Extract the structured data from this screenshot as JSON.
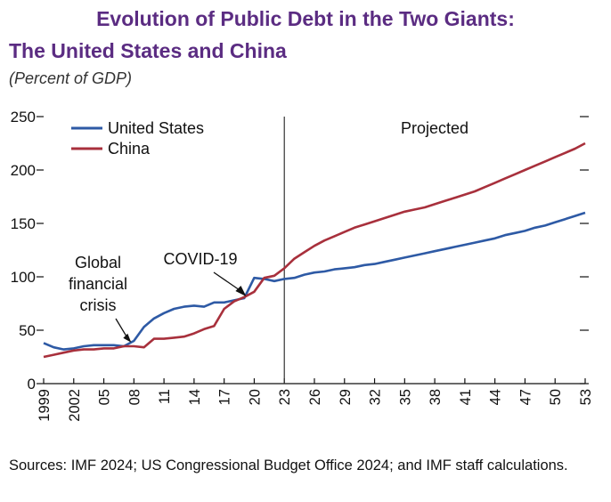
{
  "header": {
    "title_line1": "Evolution of Public Debt in the Two Giants:",
    "title_line2": "The United States and China",
    "subtitle": "(Percent of GDP)"
  },
  "colors": {
    "us": "#2e5aa5",
    "china": "#a8303c",
    "title": "#5b2c82"
  },
  "source": "Sources: IMF 2024; US Congressional Budget Office 2024; and IMF staff calculations.",
  "chart_data": {
    "type": "line",
    "title": "Evolution of Public Debt in the Two Giants: The United States and China",
    "subtitle": "(Percent of GDP)",
    "xlabel": "",
    "ylabel": "",
    "xlim": [
      1999,
      2053
    ],
    "ylim": [
      0,
      250
    ],
    "yticks": [
      0,
      50,
      100,
      150,
      200,
      250
    ],
    "x_ticks": [
      1999,
      2002,
      2005,
      2008,
      2011,
      2014,
      2017,
      2020,
      2023,
      2026,
      2029,
      2032,
      2035,
      2038,
      2041,
      2044,
      2047,
      2050,
      2053
    ],
    "x_tick_labels": [
      "1999",
      "2002",
      "05",
      "08",
      "11",
      "14",
      "17",
      "20",
      "23",
      "26",
      "29",
      "32",
      "35",
      "38",
      "41",
      "44",
      "47",
      "50",
      "53"
    ],
    "legend_position": "top-left",
    "vertical_line": {
      "x": 2023,
      "label": "Projected"
    },
    "annotations": [
      {
        "text": "Global\nfinancial\ncrisis",
        "x": 2008,
        "y": 36
      },
      {
        "text": "COVID-19",
        "x": 2020,
        "y": 80
      }
    ],
    "x": [
      1999,
      2000,
      2001,
      2002,
      2003,
      2004,
      2005,
      2006,
      2007,
      2008,
      2009,
      2010,
      2011,
      2012,
      2013,
      2014,
      2015,
      2016,
      2017,
      2018,
      2019,
      2020,
      2021,
      2022,
      2023,
      2024,
      2025,
      2026,
      2027,
      2028,
      2029,
      2030,
      2031,
      2032,
      2033,
      2034,
      2035,
      2036,
      2037,
      2038,
      2039,
      2040,
      2041,
      2042,
      2043,
      2044,
      2045,
      2046,
      2047,
      2048,
      2049,
      2050,
      2051,
      2052,
      2053
    ],
    "series": [
      {
        "name": "United States",
        "color": "#2e5aa5",
        "values": [
          38,
          34,
          32,
          33,
          35,
          36,
          36,
          36,
          35,
          40,
          53,
          61,
          66,
          70,
          72,
          73,
          72,
          76,
          76,
          78,
          80,
          99,
          98,
          96,
          98,
          99,
          102,
          104,
          105,
          107,
          108,
          109,
          111,
          112,
          114,
          116,
          118,
          120,
          122,
          124,
          126,
          128,
          130,
          132,
          134,
          136,
          139,
          141,
          143,
          146,
          148,
          151,
          154,
          157,
          160
        ]
      },
      {
        "name": "China",
        "color": "#a8303c",
        "values": [
          25,
          27,
          29,
          31,
          32,
          32,
          33,
          33,
          35,
          35,
          34,
          42,
          42,
          43,
          44,
          47,
          51,
          54,
          70,
          77,
          81,
          86,
          99,
          101,
          108,
          117,
          123,
          129,
          134,
          138,
          142,
          146,
          149,
          152,
          155,
          158,
          161,
          163,
          165,
          168,
          171,
          174,
          177,
          180,
          184,
          188,
          192,
          196,
          200,
          204,
          208,
          212,
          216,
          220,
          225
        ]
      }
    ]
  }
}
